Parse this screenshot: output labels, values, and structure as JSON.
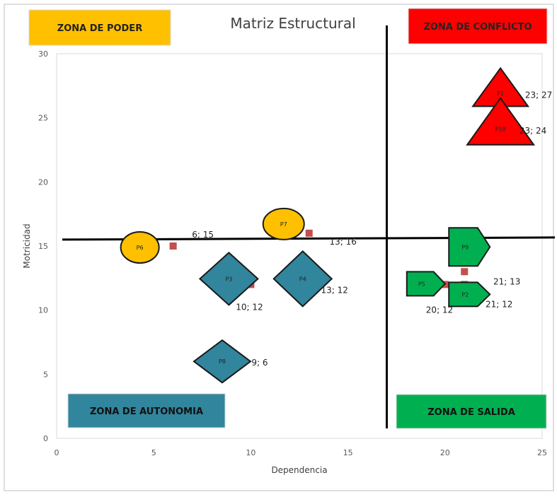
{
  "chart_data": {
    "type": "scatter",
    "title": "Matriz Estructural",
    "xlabel": "Dependencia",
    "ylabel": "Motricidad",
    "xlim": [
      0,
      25
    ],
    "ylim": [
      0,
      30
    ],
    "x_ticks": [
      "0",
      "5",
      "10",
      "15",
      "20",
      "25"
    ],
    "y_ticks": [
      "0",
      "5",
      "10",
      "15",
      "20",
      "25",
      "30"
    ],
    "grid": false,
    "divider_x": 17,
    "divider_y": 15.5,
    "points": [
      {
        "name": "P1",
        "x": 23,
        "y": 27,
        "label": "23; 27",
        "marker": "triangle",
        "color": "#ff0000"
      },
      {
        "name": "P10",
        "x": 23,
        "y": 24,
        "label": "23; 24",
        "marker": "triangle",
        "color": "#ff0000"
      },
      {
        "name": "P6",
        "x": 6,
        "y": 15,
        "label": "6; 15",
        "marker": "circle",
        "color": "#ffc000"
      },
      {
        "name": "P7",
        "x": 13,
        "y": 16,
        "label": "13; 16",
        "marker": "circle",
        "color": "#ffc000"
      },
      {
        "name": "P3",
        "x": 10,
        "y": 12,
        "label": "10; 12",
        "marker": "diamond",
        "color": "#31859c"
      },
      {
        "name": "P4",
        "x": 13,
        "y": 12,
        "label": "13; 12",
        "marker": "diamond",
        "color": "#31859c"
      },
      {
        "name": "P8",
        "x": 9,
        "y": 6,
        "label": "9; 6",
        "marker": "diamond",
        "color": "#31859c"
      },
      {
        "name": "P9",
        "x": 21,
        "y": 13,
        "label": "21; 13",
        "marker": "pentagon",
        "color": "#00b050"
      },
      {
        "name": "P5",
        "x": 20,
        "y": 12,
        "label": "20; 12",
        "marker": "pentagon",
        "color": "#00b050"
      },
      {
        "name": "P2",
        "x": 21,
        "y": 12,
        "label": "21; 12",
        "marker": "pentagon",
        "color": "#00b050"
      }
    ],
    "zones": [
      {
        "key": "poder",
        "label": "ZONA DE PODER",
        "fill": "#ffc000",
        "text_color": "#222222"
      },
      {
        "key": "conflicto",
        "label": "ZONA DE CONFLICTO",
        "fill": "#ff0000",
        "text_color": "#222222"
      },
      {
        "key": "autonomia",
        "label": "ZONA DE AUTONOMIA",
        "fill": "#31859c",
        "text_color": "#111111"
      },
      {
        "key": "salida",
        "label": "ZONA DE SALIDA",
        "fill": "#00b050",
        "text_color": "#111111"
      }
    ]
  }
}
